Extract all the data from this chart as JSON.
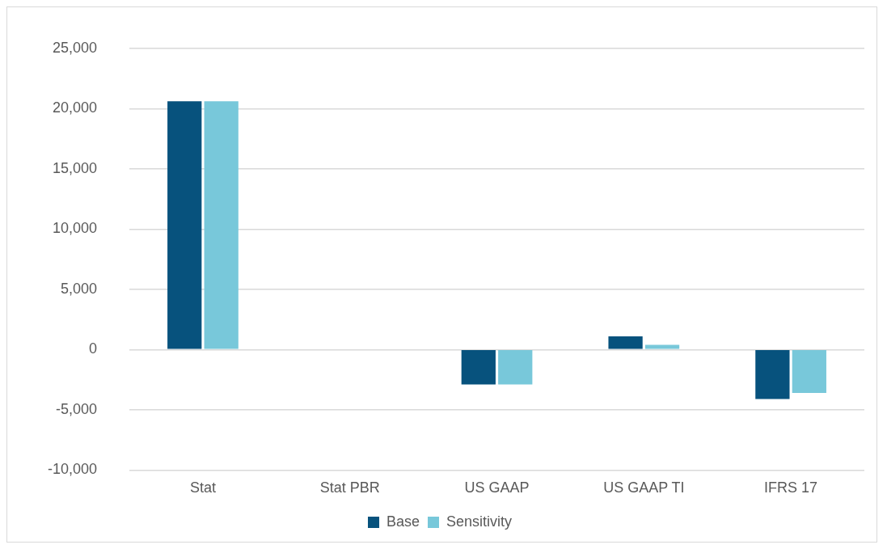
{
  "chart_data": {
    "type": "bar",
    "categories": [
      "Stat",
      "Stat PBR",
      "US GAAP",
      "US GAAP TI",
      "IFRS 17"
    ],
    "series": [
      {
        "name": "Base",
        "color": "#07527d",
        "values": [
          20600,
          0,
          -2900,
          1100,
          -4100
        ]
      },
      {
        "name": "Sensitivity",
        "color": "#78c8da",
        "values": [
          20600,
          0,
          -2900,
          400,
          -3600
        ]
      }
    ],
    "ylim": [
      -10000,
      25000
    ],
    "yticks": [
      {
        "value": -10000,
        "label": "-10,000"
      },
      {
        "value": -5000,
        "label": "-5,000"
      },
      0,
      {
        "value": 5000,
        "label": "5,000"
      },
      {
        "value": 10000,
        "label": "10,000"
      },
      {
        "value": 15000,
        "label": "15,000"
      },
      {
        "value": 20000,
        "label": "20,000"
      },
      {
        "value": 25000,
        "label": "25,000"
      }
    ],
    "grid": "y",
    "legend": "bottom"
  }
}
